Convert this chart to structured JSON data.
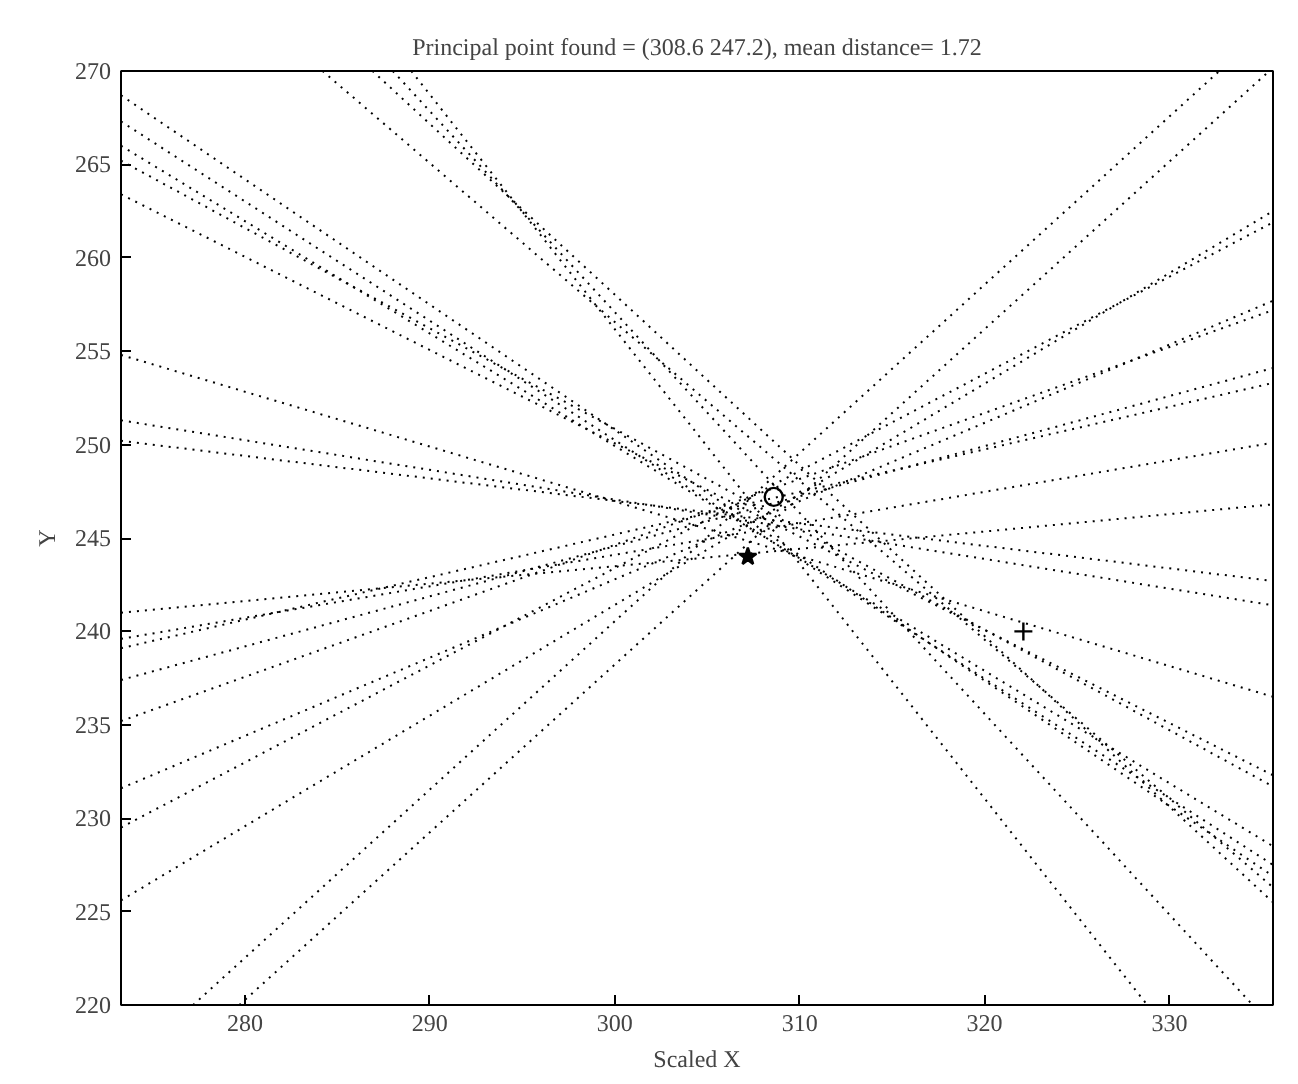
{
  "chart_data": {
    "type": "line",
    "title": "Principal point found = (308.6 247.2), mean distance= 1.72",
    "xlabel": "Scaled X",
    "ylabel": "Y",
    "xlim": [
      273.3,
      335.6
    ],
    "ylim": [
      220,
      270
    ],
    "xticks": [
      280,
      290,
      300,
      310,
      320,
      330
    ],
    "yticks": [
      220,
      225,
      230,
      235,
      240,
      245,
      250,
      255,
      260,
      265,
      270
    ],
    "grid": false,
    "line_style": "dotted",
    "marker": "none",
    "series": [
      {
        "color": "#000000",
        "x": [
          273.3,
          335.6
        ],
        "values": [
          241.0,
          246.8
        ]
      },
      {
        "color": "#000000",
        "x": [
          273.3,
          335.6
        ],
        "values": [
          239.6,
          250.1
        ]
      },
      {
        "color": "#000000",
        "x": [
          273.3,
          335.6
        ],
        "values": [
          239.1,
          253.3
        ]
      },
      {
        "color": "#000000",
        "x": [
          273.3,
          335.6
        ],
        "values": [
          237.4,
          254.1
        ]
      },
      {
        "color": "#000000",
        "x": [
          273.3,
          335.6
        ],
        "values": [
          235.2,
          257.2
        ]
      },
      {
        "color": "#000000",
        "x": [
          273.3,
          335.6
        ],
        "values": [
          231.6,
          257.7
        ]
      },
      {
        "color": "#000000",
        "x": [
          273.3,
          335.6
        ],
        "values": [
          229.5,
          261.9
        ]
      },
      {
        "color": "#000000",
        "x": [
          273.3,
          335.6
        ],
        "values": [
          225.6,
          262.5
        ]
      },
      {
        "color": "#000000",
        "x": [
          277.2,
          332.7
        ],
        "values": [
          220,
          270
        ]
      },
      {
        "color": "#000000",
        "x": [
          279.7,
          335.4
        ],
        "values": [
          220,
          270
        ]
      },
      {
        "color": "#000000",
        "x": [
          289.0,
          328.8
        ],
        "values": [
          270,
          220
        ]
      },
      {
        "color": "#000000",
        "x": [
          288.0,
          334.5
        ],
        "values": [
          270,
          220
        ]
      },
      {
        "color": "#000000",
        "x": [
          286.9,
          335.6
        ],
        "values": [
          270,
          225.5
        ]
      },
      {
        "color": "#000000",
        "x": [
          284.2,
          335.6
        ],
        "values": [
          270,
          226.3
        ]
      },
      {
        "color": "#000000",
        "x": [
          273.3,
          335.6
        ],
        "values": [
          268.7,
          226.9
        ]
      },
      {
        "color": "#000000",
        "x": [
          273.3,
          335.6
        ],
        "values": [
          267.3,
          227.5
        ]
      },
      {
        "color": "#000000",
        "x": [
          273.3,
          335.6
        ],
        "values": [
          266.0,
          228.5
        ]
      },
      {
        "color": "#000000",
        "x": [
          273.3,
          335.6
        ],
        "values": [
          265.2,
          231.7
        ]
      },
      {
        "color": "#000000",
        "x": [
          273.3,
          335.6
        ],
        "values": [
          263.4,
          232.3
        ]
      },
      {
        "color": "#000000",
        "x": [
          273.3,
          335.6
        ],
        "values": [
          254.8,
          236.5
        ]
      },
      {
        "color": "#000000",
        "x": [
          273.3,
          335.6
        ],
        "values": [
          251.3,
          241.4
        ]
      },
      {
        "color": "#000000",
        "x": [
          273.3,
          335.6
        ],
        "values": [
          250.2,
          242.7
        ]
      },
      {
        "type": "scatter",
        "color": "#000000",
        "marker": "circle",
        "x": [
          308.6
        ],
        "values": [
          247.2
        ]
      },
      {
        "type": "scatter",
        "color": "#000000",
        "marker": "star",
        "x": [
          307.2
        ],
        "values": [
          244.0
        ]
      },
      {
        "type": "scatter",
        "color": "#000000",
        "marker": "cross",
        "x": [
          322.1
        ],
        "values": [
          240.0
        ]
      }
    ]
  }
}
